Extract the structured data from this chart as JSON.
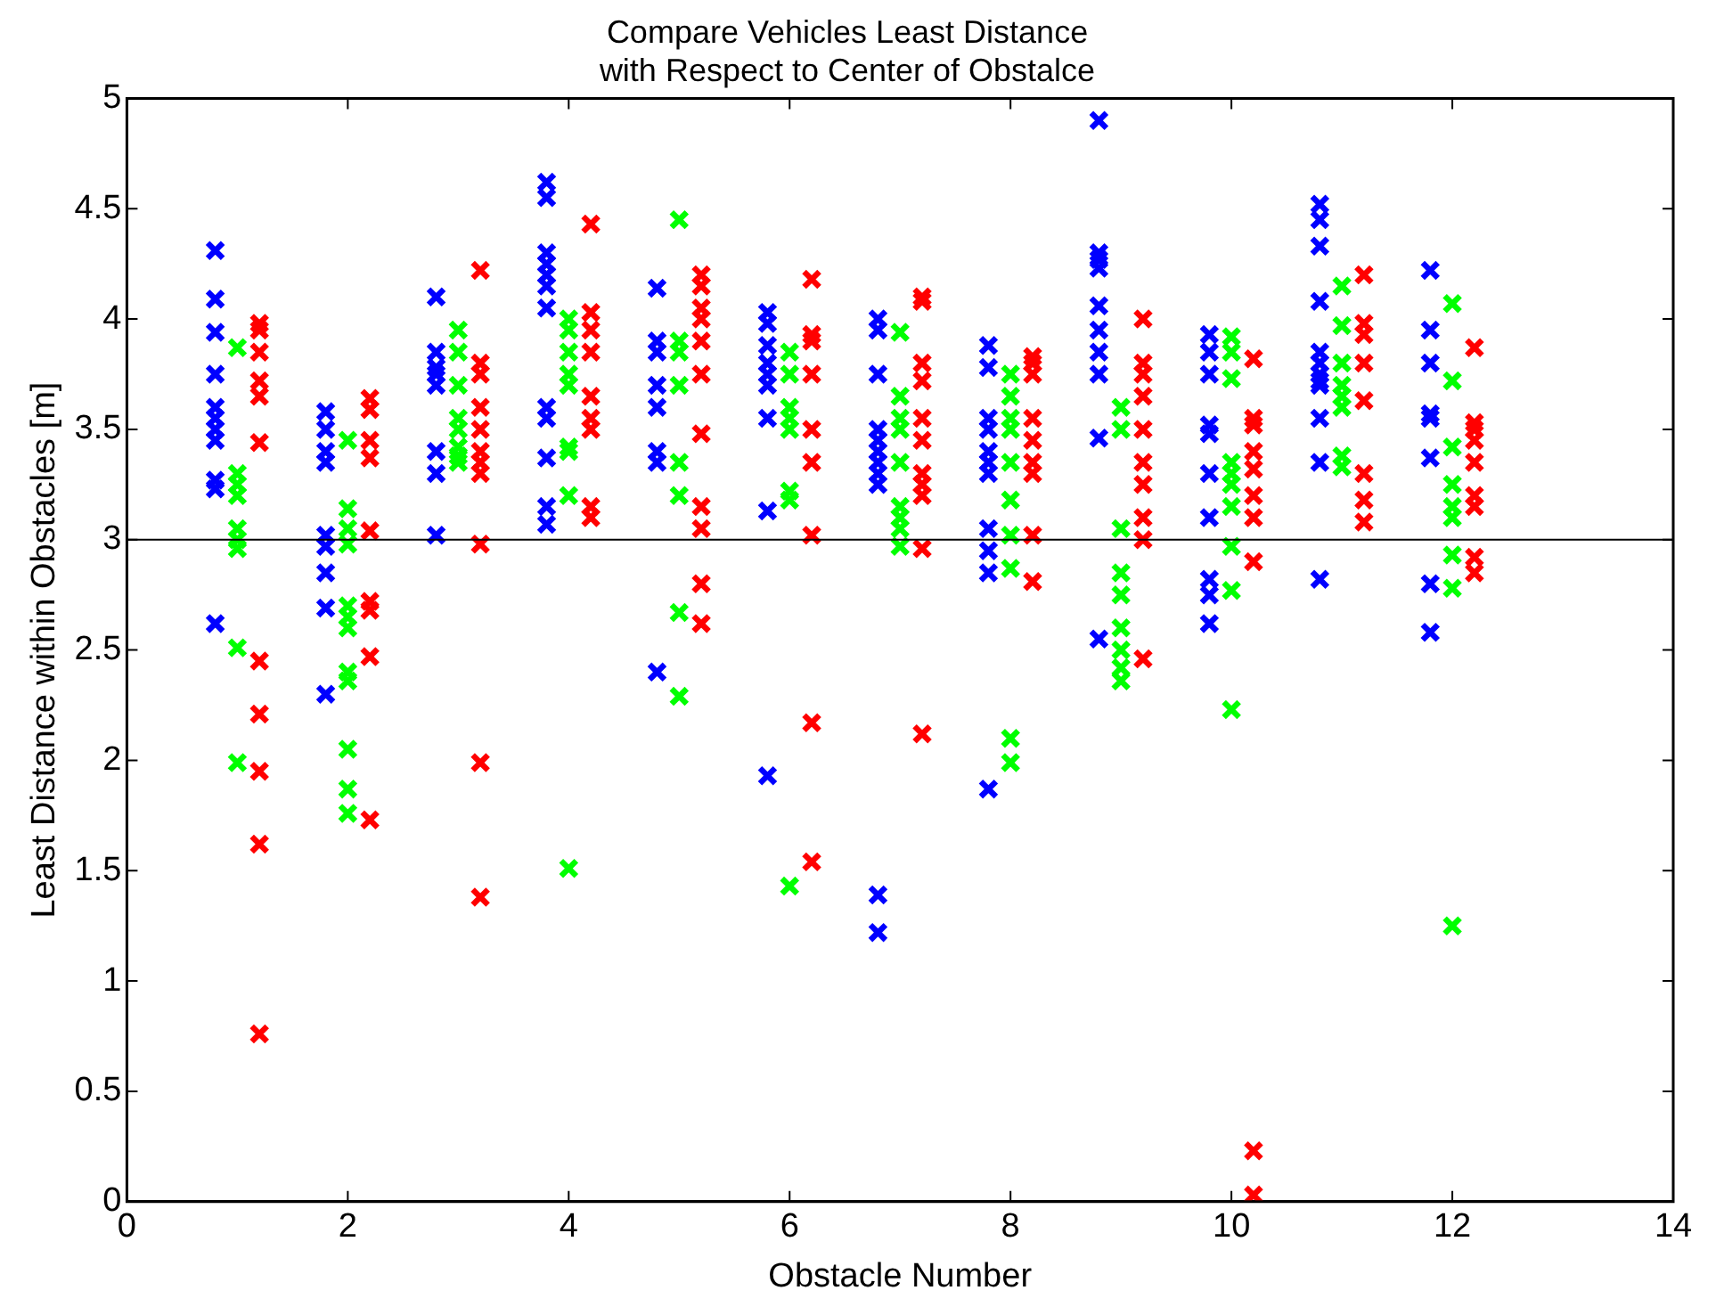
{
  "chart_data": {
    "type": "scatter",
    "title": "Compare Vehicles Least Distance\nwith Respect to Center of Obstalce",
    "xlabel": "Obstacle Number",
    "ylabel": "Least Distance within Obstacles [m]",
    "xlim": [
      0,
      14
    ],
    "xticks": [
      0,
      2,
      4,
      6,
      8,
      10,
      12,
      14
    ],
    "ylim": [
      0,
      5
    ],
    "yticks": [
      0,
      0.5,
      1,
      1.5,
      2,
      2.5,
      3,
      3.5,
      4,
      4.5,
      5
    ],
    "grid": false,
    "legend": false,
    "marker": "cross",
    "ref_lines": [
      {
        "axis": "y",
        "value": 3,
        "color": "#000000"
      }
    ],
    "series": [
      {
        "color": "#0000ff",
        "x": [
          0.8,
          0.8,
          0.8,
          0.8,
          0.8,
          0.8,
          0.8,
          0.8,
          0.8,
          0.8,
          0.8,
          1.8,
          1.8,
          1.8,
          1.8,
          1.8,
          1.8,
          1.8,
          1.8,
          1.8,
          2.8,
          2.8,
          2.8,
          2.8,
          2.8,
          2.8,
          2.8,
          2.8,
          3.8,
          3.8,
          3.8,
          3.8,
          3.8,
          3.8,
          3.8,
          3.8,
          3.8,
          3.8,
          3.8,
          3.8,
          4.8,
          4.8,
          4.8,
          4.8,
          4.8,
          4.8,
          4.8,
          4.8,
          5.8,
          5.8,
          5.8,
          5.8,
          5.8,
          5.8,
          5.8,
          5.8,
          5.8,
          6.8,
          6.8,
          6.8,
          6.8,
          6.8,
          6.8,
          6.8,
          6.8,
          6.8,
          6.8,
          6.8,
          7.8,
          7.8,
          7.8,
          7.8,
          7.8,
          7.8,
          7.8,
          7.8,
          7.8,
          7.8,
          7.8,
          8.8,
          8.8,
          8.8,
          8.8,
          8.8,
          8.8,
          8.8,
          8.8,
          8.8,
          8.8,
          9.8,
          9.8,
          9.8,
          9.8,
          9.8,
          9.8,
          9.8,
          9.8,
          9.8,
          9.8,
          10.8,
          10.8,
          10.8,
          10.8,
          10.8,
          10.8,
          10.8,
          10.8,
          10.8,
          10.8,
          10.8,
          10.8,
          11.8,
          11.8,
          11.8,
          11.8,
          11.8,
          11.8,
          11.8,
          11.8
        ],
        "values": [
          4.31,
          4.09,
          3.94,
          3.75,
          3.6,
          3.55,
          3.5,
          3.45,
          3.27,
          3.23,
          2.62,
          3.58,
          3.5,
          3.4,
          3.35,
          3.02,
          2.97,
          2.85,
          2.69,
          2.3,
          4.1,
          3.85,
          3.78,
          3.75,
          3.7,
          3.4,
          3.3,
          3.02,
          4.62,
          4.55,
          4.3,
          4.25,
          4.2,
          4.15,
          4.05,
          3.6,
          3.55,
          3.37,
          3.15,
          3.07,
          4.14,
          3.9,
          3.85,
          3.7,
          3.6,
          3.4,
          3.35,
          2.4,
          4.03,
          3.98,
          3.88,
          3.8,
          3.75,
          3.7,
          3.55,
          3.13,
          1.93,
          4.0,
          3.95,
          3.75,
          3.5,
          3.45,
          3.4,
          3.35,
          3.3,
          3.25,
          1.39,
          1.22,
          3.88,
          3.78,
          3.55,
          3.5,
          3.4,
          3.35,
          3.3,
          3.05,
          2.95,
          2.85,
          1.87,
          4.9,
          4.3,
          4.27,
          4.23,
          4.06,
          3.95,
          3.85,
          3.75,
          3.46,
          2.55,
          3.93,
          3.85,
          3.75,
          3.52,
          3.48,
          3.3,
          3.1,
          2.82,
          2.75,
          2.62,
          4.52,
          4.45,
          4.33,
          4.08,
          3.85,
          3.8,
          3.75,
          3.72,
          3.7,
          3.55,
          3.35,
          2.82,
          4.22,
          3.95,
          3.8,
          3.57,
          3.55,
          3.37,
          2.8,
          2.58
        ]
      },
      {
        "color": "#00ff00",
        "x": [
          1,
          1,
          1,
          1,
          1,
          1,
          1,
          1,
          1,
          2,
          2,
          2,
          2,
          2,
          2,
          2,
          2,
          2,
          2,
          2,
          2,
          3,
          3,
          3,
          3,
          3,
          3,
          3,
          3,
          4,
          4,
          4,
          4,
          4,
          4,
          4,
          4,
          4,
          5,
          5,
          5,
          5,
          5,
          5,
          5,
          5,
          6,
          6,
          6,
          6,
          6,
          6,
          6,
          6,
          7,
          7,
          7,
          7,
          7,
          7,
          7,
          7,
          7,
          8,
          8,
          8,
          8,
          8,
          8,
          8,
          8,
          8,
          8,
          9,
          9,
          9,
          9,
          9,
          9,
          9,
          9,
          9,
          10,
          10,
          10,
          10,
          10,
          10,
          10,
          10,
          10,
          10,
          11,
          11,
          11,
          11,
          11,
          11,
          11,
          11,
          12,
          12,
          12,
          12,
          12,
          12,
          12,
          12,
          12
        ],
        "values": [
          3.87,
          3.3,
          3.25,
          3.2,
          3.05,
          3.0,
          2.96,
          2.51,
          1.99,
          3.45,
          3.14,
          3.05,
          2.98,
          2.7,
          2.65,
          2.6,
          2.4,
          2.36,
          2.05,
          1.87,
          1.76,
          3.95,
          3.85,
          3.7,
          3.55,
          3.5,
          3.42,
          3.38,
          3.35,
          4.0,
          3.95,
          3.85,
          3.75,
          3.7,
          3.42,
          3.4,
          3.2,
          1.51,
          4.45,
          3.9,
          3.85,
          3.7,
          3.35,
          3.2,
          2.67,
          2.29,
          3.85,
          3.75,
          3.6,
          3.55,
          3.5,
          3.22,
          3.18,
          1.43,
          3.94,
          3.65,
          3.55,
          3.5,
          3.35,
          3.15,
          3.1,
          3.05,
          2.97,
          3.75,
          3.65,
          3.55,
          3.5,
          3.35,
          3.18,
          3.02,
          2.87,
          2.1,
          1.99,
          3.6,
          3.5,
          3.05,
          2.85,
          2.75,
          2.6,
          2.5,
          2.42,
          2.36,
          3.92,
          3.85,
          3.73,
          3.35,
          3.3,
          3.25,
          3.15,
          2.97,
          2.77,
          2.23,
          4.15,
          3.97,
          3.8,
          3.7,
          3.65,
          3.6,
          3.38,
          3.33,
          4.07,
          3.72,
          3.42,
          3.25,
          3.15,
          3.1,
          2.93,
          2.78,
          1.25
        ]
      },
      {
        "color": "#ff0000",
        "x": [
          1.2,
          1.2,
          1.2,
          1.2,
          1.2,
          1.2,
          1.2,
          1.2,
          1.2,
          1.2,
          1.2,
          2.2,
          2.2,
          2.2,
          2.2,
          2.2,
          2.2,
          2.2,
          2.2,
          2.2,
          3.2,
          3.2,
          3.2,
          3.2,
          3.2,
          3.2,
          3.2,
          3.2,
          3.2,
          3.2,
          3.2,
          4.2,
          4.2,
          4.2,
          4.2,
          4.2,
          4.2,
          4.2,
          4.2,
          4.2,
          5.2,
          5.2,
          5.2,
          5.2,
          5.2,
          5.2,
          5.2,
          5.2,
          5.2,
          5.2,
          5.2,
          6.2,
          6.2,
          6.2,
          6.2,
          6.2,
          6.2,
          6.2,
          6.2,
          6.2,
          7.2,
          7.2,
          7.2,
          7.2,
          7.2,
          7.2,
          7.2,
          7.2,
          7.2,
          7.2,
          7.2,
          8.2,
          8.2,
          8.2,
          8.2,
          8.2,
          8.2,
          8.2,
          8.2,
          8.2,
          9.2,
          9.2,
          9.2,
          9.2,
          9.2,
          9.2,
          9.2,
          9.2,
          9.2,
          9.2,
          10.2,
          10.2,
          10.2,
          10.2,
          10.2,
          10.2,
          10.2,
          10.2,
          10.2,
          10.2,
          11.2,
          11.2,
          11.2,
          11.2,
          11.2,
          11.2,
          11.2,
          11.2,
          12.2,
          12.2,
          12.2,
          12.2,
          12.2,
          12.2,
          12.2,
          12.2,
          12.2
        ],
        "values": [
          3.98,
          3.95,
          3.85,
          3.72,
          3.65,
          3.44,
          2.45,
          2.21,
          1.95,
          1.62,
          0.76,
          3.64,
          3.59,
          3.45,
          3.37,
          3.04,
          2.72,
          2.68,
          2.47,
          1.73,
          4.22,
          3.8,
          3.75,
          3.6,
          3.5,
          3.4,
          3.35,
          3.3,
          2.98,
          1.99,
          1.38,
          4.43,
          4.03,
          3.95,
          3.85,
          3.65,
          3.55,
          3.5,
          3.15,
          3.1,
          4.2,
          4.15,
          4.05,
          4.0,
          3.9,
          3.75,
          3.48,
          3.15,
          3.05,
          2.8,
          2.62,
          4.18,
          3.93,
          3.9,
          3.75,
          3.5,
          3.35,
          3.02,
          2.17,
          1.54,
          4.1,
          4.08,
          3.8,
          3.72,
          3.55,
          3.45,
          3.3,
          3.25,
          3.2,
          2.96,
          2.12,
          3.83,
          3.8,
          3.75,
          3.55,
          3.45,
          3.35,
          3.3,
          3.02,
          2.81,
          4.0,
          3.8,
          3.75,
          3.65,
          3.5,
          3.35,
          3.25,
          3.1,
          3.0,
          2.46,
          3.82,
          3.55,
          3.52,
          3.4,
          3.32,
          3.2,
          3.1,
          2.9,
          0.23,
          0.03,
          4.2,
          3.98,
          3.93,
          3.8,
          3.63,
          3.3,
          3.18,
          3.08,
          3.87,
          3.53,
          3.5,
          3.45,
          3.35,
          3.2,
          3.15,
          2.92,
          2.85
        ]
      }
    ]
  }
}
